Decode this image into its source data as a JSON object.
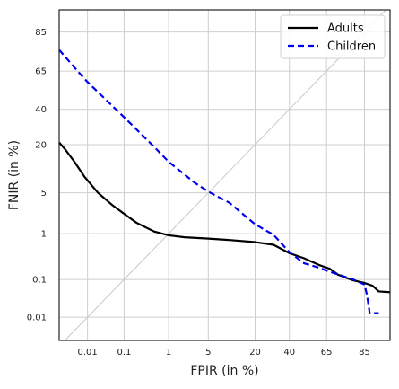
{
  "chart_data": {
    "type": "line",
    "xlabel": "FPIR (in %)",
    "ylabel": "FNIR (in %)",
    "x_scale": "probit",
    "y_scale": "probit",
    "xlim": [
      0.0013,
      93
    ],
    "ylim": [
      0.002,
      92
    ],
    "x_ticks": [
      0.01,
      0.1,
      1,
      5,
      20,
      40,
      65,
      85
    ],
    "x_tick_labels": [
      "0.01",
      "0.1",
      "1",
      "5",
      "20",
      "40",
      "65",
      "85"
    ],
    "y_ticks": [
      0.01,
      0.1,
      1,
      5,
      20,
      40,
      65,
      85
    ],
    "y_tick_labels": [
      "0.01",
      "0.1",
      "1",
      "5",
      "20",
      "40",
      "65",
      "85"
    ],
    "grid": true,
    "diagonal_reference": true,
    "legend_position": "top-right",
    "series": [
      {
        "name": "Adults",
        "color": "#000000",
        "dash": "solid",
        "points": [
          [
            0.0013,
            21
          ],
          [
            0.002,
            18
          ],
          [
            0.004,
            13
          ],
          [
            0.008,
            8.5
          ],
          [
            0.02,
            5
          ],
          [
            0.05,
            3.2
          ],
          [
            0.1,
            2.3
          ],
          [
            0.2,
            1.6
          ],
          [
            0.5,
            1.1
          ],
          [
            1,
            0.93
          ],
          [
            2,
            0.85
          ],
          [
            5,
            0.8
          ],
          [
            10,
            0.75
          ],
          [
            20,
            0.68
          ],
          [
            30,
            0.6
          ],
          [
            40,
            0.4
          ],
          [
            50,
            0.31
          ],
          [
            60,
            0.22
          ],
          [
            67,
            0.18
          ],
          [
            72,
            0.13
          ],
          [
            80,
            0.095
          ],
          [
            85,
            0.082
          ],
          [
            88,
            0.07
          ],
          [
            90,
            0.05
          ],
          [
            93,
            0.048
          ]
        ]
      },
      {
        "name": "Children",
        "color": "#0000ee",
        "dash": "dashed",
        "points": [
          [
            0.0013,
            77
          ],
          [
            0.005,
            65
          ],
          [
            0.01,
            58
          ],
          [
            0.1,
            35
          ],
          [
            0.5,
            19
          ],
          [
            1,
            13
          ],
          [
            3,
            7
          ],
          [
            5,
            5.2
          ],
          [
            10,
            3.5
          ],
          [
            20,
            1.5
          ],
          [
            30,
            0.95
          ],
          [
            40,
            0.42
          ],
          [
            50,
            0.24
          ],
          [
            60,
            0.19
          ],
          [
            70,
            0.14
          ],
          [
            80,
            0.1
          ],
          [
            85,
            0.075
          ],
          [
            86,
            0.04
          ],
          [
            87,
            0.013
          ],
          [
            90,
            0.013
          ]
        ]
      }
    ]
  }
}
